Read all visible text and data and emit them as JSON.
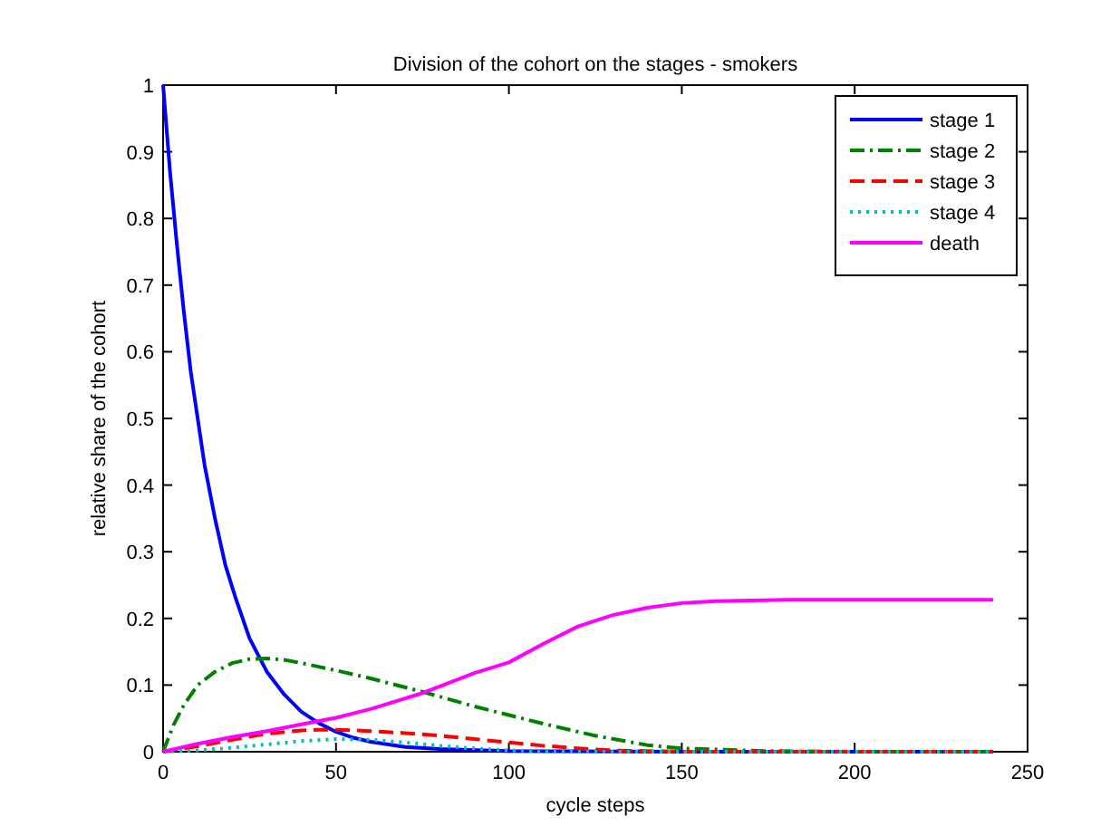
{
  "chart_data": {
    "type": "line",
    "title": "Division of the cohort on the stages - smokers",
    "xlabel": "cycle steps",
    "ylabel": "relative share of the cohort",
    "xlim": [
      0,
      250
    ],
    "xticks": [
      0,
      50,
      100,
      150,
      200,
      250
    ],
    "ylim": [
      0,
      1
    ],
    "yticks": [
      0,
      0.1,
      0.2,
      0.3,
      0.4,
      0.5,
      0.6,
      0.7,
      0.8,
      0.9,
      1
    ],
    "grid": false,
    "legend": "top right",
    "marker": "none",
    "series": [
      {
        "name": "stage 1",
        "color": "#0000ff",
        "line_style": "solid",
        "x": [
          0,
          2,
          4,
          6,
          8,
          10,
          12,
          15,
          18,
          21,
          25,
          30,
          35,
          40,
          45,
          50,
          55,
          60,
          70,
          80,
          100,
          150,
          200,
          240
        ],
        "values": [
          1,
          0.87,
          0.76,
          0.66,
          0.57,
          0.5,
          0.43,
          0.35,
          0.28,
          0.23,
          0.17,
          0.12,
          0.086,
          0.06,
          0.043,
          0.03,
          0.021,
          0.015,
          0.007,
          0.004,
          0.001,
          0,
          0,
          0
        ]
      },
      {
        "name": "stage 2",
        "color": "#008000",
        "line_style": "dashdot",
        "x": [
          0,
          3,
          6,
          10,
          15,
          20,
          25,
          30,
          35,
          40,
          50,
          60,
          75,
          90,
          100,
          110,
          125,
          140,
          150,
          175,
          200,
          240
        ],
        "values": [
          0,
          0.04,
          0.07,
          0.1,
          0.12,
          0.133,
          0.139,
          0.14,
          0.138,
          0.133,
          0.122,
          0.11,
          0.09,
          0.068,
          0.055,
          0.042,
          0.024,
          0.01,
          0.005,
          0.001,
          0,
          0
        ]
      },
      {
        "name": "stage 3",
        "color": "#ff0000",
        "line_style": "dashed",
        "x": [
          0,
          10,
          20,
          30,
          40,
          45,
          50,
          60,
          70,
          80,
          90,
          100,
          110,
          120,
          130,
          150,
          200,
          240
        ],
        "values": [
          0,
          0.008,
          0.018,
          0.027,
          0.032,
          0.033,
          0.033,
          0.031,
          0.028,
          0.024,
          0.019,
          0.014,
          0.009,
          0.005,
          0.002,
          0,
          0,
          0
        ]
      },
      {
        "name": "stage 4",
        "color": "#00bfbf",
        "line_style": "dotted",
        "x": [
          0,
          10,
          20,
          30,
          40,
          50,
          60,
          70,
          80,
          90,
          100,
          120,
          150,
          200,
          240
        ],
        "values": [
          0,
          0.002,
          0.006,
          0.011,
          0.016,
          0.019,
          0.018,
          0.014,
          0.009,
          0.005,
          0.002,
          0,
          0,
          0,
          0
        ]
      },
      {
        "name": "death",
        "color": "#ff00ff",
        "line_style": "solid",
        "x": [
          0,
          10,
          20,
          30,
          40,
          50,
          60,
          75,
          90,
          100,
          110,
          120,
          130,
          140,
          150,
          160,
          180,
          200,
          240
        ],
        "values": [
          0,
          0.012,
          0.022,
          0.031,
          0.041,
          0.051,
          0.064,
          0.088,
          0.118,
          0.134,
          0.162,
          0.188,
          0.205,
          0.216,
          0.223,
          0.226,
          0.228,
          0.228,
          0.228
        ]
      }
    ]
  }
}
